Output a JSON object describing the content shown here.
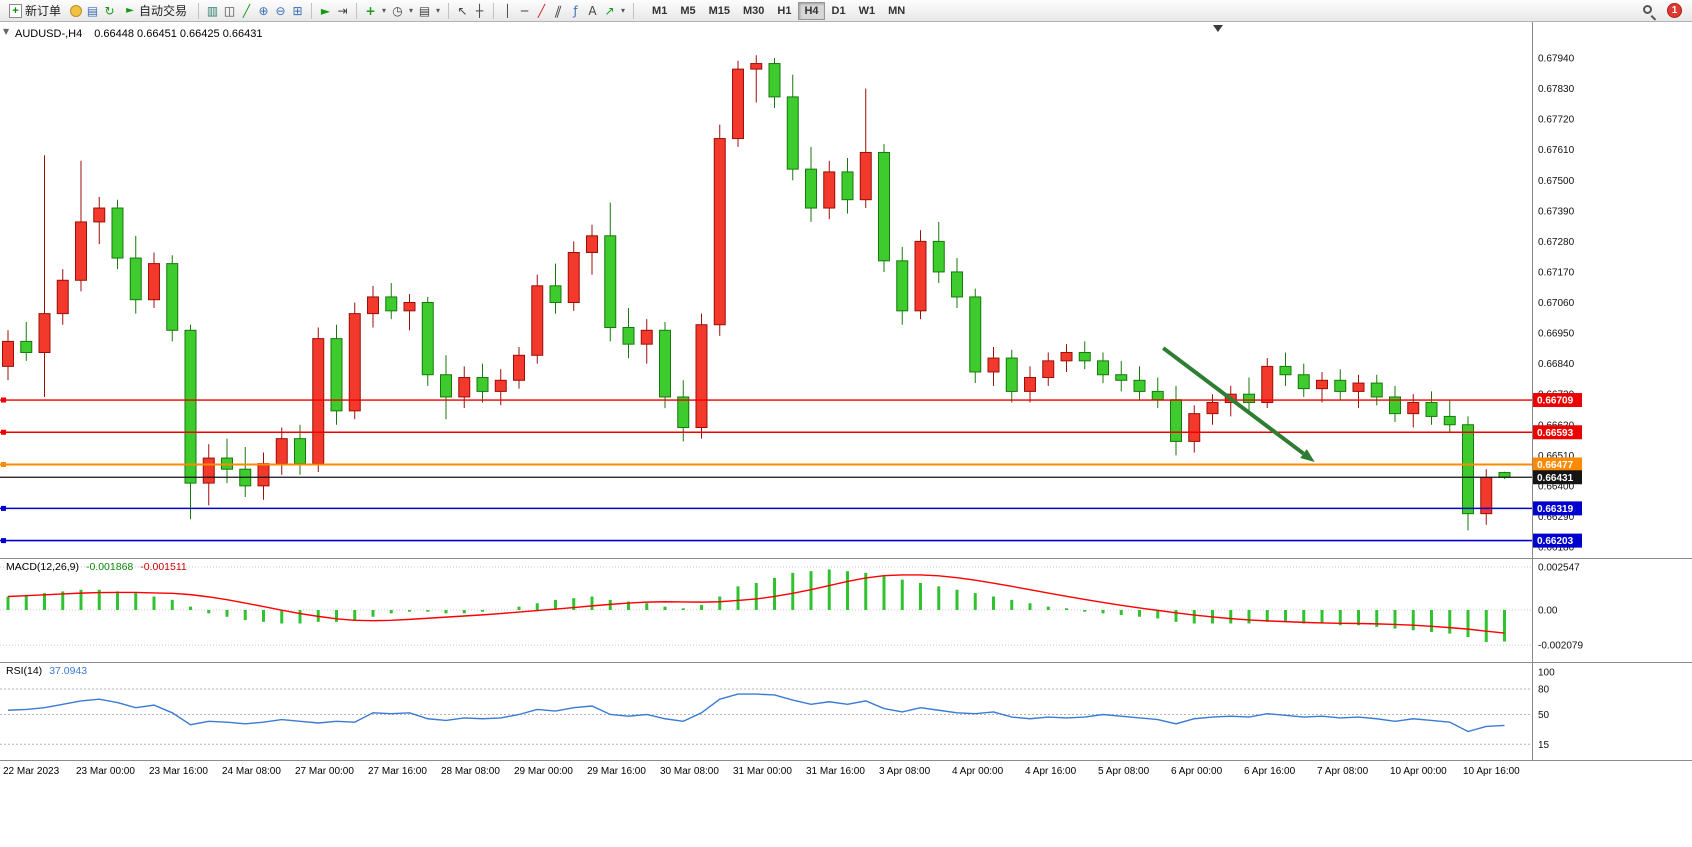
{
  "toolbar": {
    "new_order_label": "新订单",
    "autotrading_label": "自动交易",
    "timeframes": [
      "M1",
      "M5",
      "M15",
      "M30",
      "H1",
      "H4",
      "D1",
      "W1",
      "MN"
    ],
    "active_timeframe": "H4",
    "notification_count": "1",
    "icons": {
      "new_order_plus": "+",
      "navigator": "▤",
      "refresh": "↻",
      "autotrading_play": "►",
      "chart_bars": "▥",
      "chart_candles": "◫",
      "chart_line": "╱",
      "zoom_in": "⊕",
      "zoom_out": "⊖",
      "tile_windows": "⊞",
      "auto_scroll": "►",
      "chart_shift": "⇥",
      "indicators_plus": "+",
      "periods_clock": "◷",
      "templates": "▤",
      "dropdown_caret": "▾",
      "cursor": "↖",
      "crosshair": "┼",
      "vertical_line": "│",
      "horizontal_line": "─",
      "trendline": "╱",
      "channel": "∥",
      "fibonacci": "ƒ",
      "text_tool": "A",
      "arrow_tool": "↗"
    }
  },
  "chart": {
    "title_symbol": "AUDUSD-,H4",
    "title_ohlc": "0.66448 0.66451 0.66425 0.66431",
    "collapse_caret": "▼"
  },
  "indicators": {
    "macd_label": "MACD(12,26,9)",
    "macd_main_value": "-0.001868",
    "macd_signal_value": "-0.001511",
    "rsi_label": "RSI(14)",
    "rsi_value": "37.0943"
  },
  "chart_data": {
    "type": "candlestick",
    "symbol": "AUDUSD-",
    "period": "H4",
    "current_bar_ohlc": {
      "open": "0.66448",
      "high": "0.66451",
      "low": "0.66425",
      "close": "0.66431"
    },
    "up_color_convention": "red-up-green-down",
    "price_axis": {
      "max": 0.6794,
      "min": 0.6618,
      "labels": [
        "0.67940",
        "0.67830",
        "0.67720",
        "0.67610",
        "0.67500",
        "0.67390",
        "0.67280",
        "0.67170",
        "0.67060",
        "0.66950",
        "0.66840",
        "0.66730",
        "0.66620",
        "0.66510",
        "0.66400",
        "0.66290",
        "0.66180"
      ]
    },
    "colors": {
      "up": "#f2392c",
      "up_border": "#9c0f08",
      "down": "#3dcb2d",
      "down_border": "#157a0a",
      "macd_histogram": "#2fc42f",
      "macd_signal": "#ff0000",
      "rsi_line": "#3a7bd5"
    },
    "candles": [
      [
        0.6683,
        0.6696,
        0.6678,
        0.6692
      ],
      [
        0.6692,
        0.6699,
        0.6685,
        0.6688
      ],
      [
        0.6688,
        0.6759,
        0.6672,
        0.6702
      ],
      [
        0.6702,
        0.6718,
        0.6698,
        0.6714
      ],
      [
        0.6714,
        0.6757,
        0.671,
        0.6735
      ],
      [
        0.6735,
        0.6744,
        0.6727,
        0.674
      ],
      [
        0.674,
        0.6743,
        0.6718,
        0.6722
      ],
      [
        0.6722,
        0.673,
        0.6702,
        0.6707
      ],
      [
        0.6707,
        0.6724,
        0.6704,
        0.672
      ],
      [
        0.672,
        0.6723,
        0.6692,
        0.6696
      ],
      [
        0.6696,
        0.6698,
        0.6628,
        0.6641
      ],
      [
        0.6641,
        0.6655,
        0.6633,
        0.665
      ],
      [
        0.665,
        0.6657,
        0.6641,
        0.6646
      ],
      [
        0.6646,
        0.6654,
        0.6636,
        0.664
      ],
      [
        0.664,
        0.6652,
        0.6635,
        0.6648
      ],
      [
        0.6648,
        0.6661,
        0.6644,
        0.6657
      ],
      [
        0.6657,
        0.6662,
        0.6644,
        0.6648
      ],
      [
        0.6648,
        0.6697,
        0.6645,
        0.6693
      ],
      [
        0.6693,
        0.6698,
        0.6662,
        0.6667
      ],
      [
        0.6667,
        0.6706,
        0.6664,
        0.6702
      ],
      [
        0.6702,
        0.6712,
        0.6697,
        0.6708
      ],
      [
        0.6708,
        0.6713,
        0.67,
        0.6703
      ],
      [
        0.6703,
        0.6709,
        0.6696,
        0.6706
      ],
      [
        0.6706,
        0.6708,
        0.6676,
        0.668
      ],
      [
        0.668,
        0.6687,
        0.6664,
        0.6672
      ],
      [
        0.6672,
        0.6683,
        0.6668,
        0.6679
      ],
      [
        0.6679,
        0.6684,
        0.667,
        0.6674
      ],
      [
        0.6674,
        0.6682,
        0.6669,
        0.6678
      ],
      [
        0.6678,
        0.669,
        0.6675,
        0.6687
      ],
      [
        0.6687,
        0.6716,
        0.6684,
        0.6712
      ],
      [
        0.6712,
        0.672,
        0.6702,
        0.6706
      ],
      [
        0.6706,
        0.6728,
        0.6703,
        0.6724
      ],
      [
        0.6724,
        0.6734,
        0.6716,
        0.673
      ],
      [
        0.673,
        0.6742,
        0.6692,
        0.6697
      ],
      [
        0.6697,
        0.6704,
        0.6686,
        0.6691
      ],
      [
        0.6691,
        0.67,
        0.6684,
        0.6696
      ],
      [
        0.6696,
        0.6699,
        0.6668,
        0.6672
      ],
      [
        0.6672,
        0.6678,
        0.6656,
        0.6661
      ],
      [
        0.6661,
        0.6702,
        0.6657,
        0.6698
      ],
      [
        0.6698,
        0.677,
        0.6694,
        0.6765
      ],
      [
        0.6765,
        0.6793,
        0.6762,
        0.679
      ],
      [
        0.679,
        0.6795,
        0.6778,
        0.6792
      ],
      [
        0.6792,
        0.6794,
        0.6776,
        0.678
      ],
      [
        0.678,
        0.6788,
        0.675,
        0.6754
      ],
      [
        0.6754,
        0.6762,
        0.6735,
        0.674
      ],
      [
        0.674,
        0.6757,
        0.6736,
        0.6753
      ],
      [
        0.6753,
        0.6758,
        0.6738,
        0.6743
      ],
      [
        0.6743,
        0.6783,
        0.674,
        0.676
      ],
      [
        0.676,
        0.6763,
        0.6717,
        0.6721
      ],
      [
        0.6721,
        0.6726,
        0.6698,
        0.6703
      ],
      [
        0.6703,
        0.6732,
        0.67,
        0.6728
      ],
      [
        0.6728,
        0.6735,
        0.6713,
        0.6717
      ],
      [
        0.6717,
        0.6722,
        0.6704,
        0.6708
      ],
      [
        0.6708,
        0.6711,
        0.6677,
        0.6681
      ],
      [
        0.6681,
        0.669,
        0.6676,
        0.6686
      ],
      [
        0.6686,
        0.6689,
        0.667,
        0.6674
      ],
      [
        0.6674,
        0.6683,
        0.667,
        0.6679
      ],
      [
        0.6679,
        0.6688,
        0.6676,
        0.6685
      ],
      [
        0.6685,
        0.6691,
        0.6681,
        0.6688
      ],
      [
        0.6688,
        0.6692,
        0.6682,
        0.6685
      ],
      [
        0.6685,
        0.6688,
        0.6677,
        0.668
      ],
      [
        0.668,
        0.6685,
        0.6674,
        0.6678
      ],
      [
        0.6678,
        0.6683,
        0.6671,
        0.6674
      ],
      [
        0.6674,
        0.6679,
        0.6668,
        0.6671
      ],
      [
        0.6671,
        0.6676,
        0.6651,
        0.6656
      ],
      [
        0.6656,
        0.6669,
        0.6652,
        0.6666
      ],
      [
        0.6666,
        0.6673,
        0.6662,
        0.667
      ],
      [
        0.667,
        0.6676,
        0.6665,
        0.6673
      ],
      [
        0.6673,
        0.6679,
        0.6667,
        0.667
      ],
      [
        0.667,
        0.6686,
        0.6668,
        0.6683
      ],
      [
        0.6683,
        0.6688,
        0.6676,
        0.668
      ],
      [
        0.668,
        0.6684,
        0.6672,
        0.6675
      ],
      [
        0.6675,
        0.6681,
        0.667,
        0.6678
      ],
      [
        0.6678,
        0.6682,
        0.6671,
        0.6674
      ],
      [
        0.6674,
        0.668,
        0.6668,
        0.6677
      ],
      [
        0.6677,
        0.668,
        0.6669,
        0.6672
      ],
      [
        0.6672,
        0.6676,
        0.6663,
        0.6666
      ],
      [
        0.6666,
        0.6673,
        0.6661,
        0.667
      ],
      [
        0.667,
        0.6674,
        0.6662,
        0.6665
      ],
      [
        0.6665,
        0.6671,
        0.6659,
        0.6662
      ],
      [
        0.6662,
        0.6665,
        0.6624,
        0.663
      ],
      [
        0.663,
        0.6646,
        0.6626,
        0.6643
      ],
      [
        0.66448,
        0.66451,
        0.66425,
        0.66431
      ]
    ],
    "hlines": [
      {
        "price": 0.66709,
        "label": "0.66709",
        "color": "#ee0000",
        "width": 1.4
      },
      {
        "price": 0.66593,
        "label": "0.66593",
        "color": "#ee0000",
        "width": 1.4
      },
      {
        "price": 0.66477,
        "label": "0.66477",
        "color": "#ff8a00",
        "width": 2
      },
      {
        "price": 0.66431,
        "label": "0.66431",
        "color": "#151515",
        "width": 1.2,
        "role": "current-price"
      },
      {
        "price": 0.66319,
        "label": "0.66319",
        "color": "#0000cf",
        "width": 1.6
      },
      {
        "price": 0.66203,
        "label": "0.66203",
        "color": "#0000cf",
        "width": 1.6
      }
    ],
    "arrow": {
      "from_bar": 63.3,
      "from_price": 0.66896,
      "to_bar": 71.6,
      "to_price": 0.66486,
      "color": "#2e7d32",
      "width": 4
    },
    "shift_marker_bar": 66.3,
    "time_labels": [
      "22 Mar 2023",
      "23 Mar 00:00",
      "23 Mar 16:00",
      "24 Mar 08:00",
      "27 Mar 00:00",
      "27 Mar 16:00",
      "28 Mar 08:00",
      "29 Mar 00:00",
      "29 Mar 16:00",
      "30 Mar 08:00",
      "31 Mar 00:00",
      "31 Mar 16:00",
      "3 Apr 08:00",
      "4 Apr 00:00",
      "4 Apr 16:00",
      "5 Apr 08:00",
      "6 Apr 00:00",
      "6 Apr 16:00",
      "7 Apr 08:00",
      "10 Apr 00:00",
      "10 Apr 16:00"
    ],
    "macd": {
      "scale_values": [
        0.002547,
        0,
        -0.002079
      ],
      "scale_labels": [
        "0.002547",
        "0.00",
        "-0.002079"
      ],
      "histogram": [
        0.0008,
        0.0009,
        0.001,
        0.0011,
        0.0012,
        0.0012,
        0.0011,
        0.001,
        0.0008,
        0.0006,
        0.0002,
        -0.0002,
        -0.0004,
        -0.0006,
        -0.0007,
        -0.0008,
        -0.0008,
        -0.0007,
        -0.0007,
        -0.0006,
        -0.0004,
        -0.0002,
        -0.0001,
        -0.0001,
        -0.0002,
        -0.0002,
        -0.0001,
        0.0,
        0.0002,
        0.0004,
        0.0006,
        0.0007,
        0.0008,
        0.0006,
        0.0005,
        0.0004,
        0.0002,
        0.0001,
        0.0003,
        0.0008,
        0.0014,
        0.0016,
        0.0019,
        0.0022,
        0.0023,
        0.0024,
        0.0023,
        0.0022,
        0.002,
        0.0018,
        0.0016,
        0.0014,
        0.0012,
        0.001,
        0.0008,
        0.0006,
        0.0004,
        0.0002,
        0.0001,
        -0.0001,
        -0.0002,
        -0.0003,
        -0.0004,
        -0.0005,
        -0.0007,
        -0.0008,
        -0.0008,
        -0.0008,
        -0.0008,
        -0.0007,
        -0.0007,
        -0.0008,
        -0.0008,
        -0.0009,
        -0.0009,
        -0.001,
        -0.0011,
        -0.0012,
        -0.0013,
        -0.0014,
        -0.0016,
        -0.0019,
        -0.001868
      ]
    },
    "rsi": {
      "scale_values": [
        100,
        80,
        50,
        15
      ],
      "scale_labels": [
        "100",
        "80",
        "50",
        "15"
      ],
      "level_lines": [
        80,
        50,
        15
      ],
      "values": [
        55,
        56,
        58,
        62,
        66,
        68,
        64,
        58,
        61,
        52,
        38,
        42,
        41,
        39,
        41,
        44,
        42,
        40,
        42,
        41,
        52,
        51,
        52,
        45,
        43,
        46,
        45,
        46,
        50,
        56,
        54,
        58,
        60,
        50,
        48,
        50,
        45,
        42,
        52,
        68,
        74,
        74,
        73,
        67,
        62,
        65,
        62,
        66,
        57,
        53,
        58,
        55,
        52,
        51,
        53,
        47,
        45,
        47,
        46,
        47,
        50,
        48,
        46,
        44,
        39,
        45,
        47,
        48,
        47,
        51,
        49,
        47,
        48,
        46,
        47,
        45,
        42,
        45,
        43,
        41,
        30,
        36,
        37.0943
      ]
    }
  }
}
